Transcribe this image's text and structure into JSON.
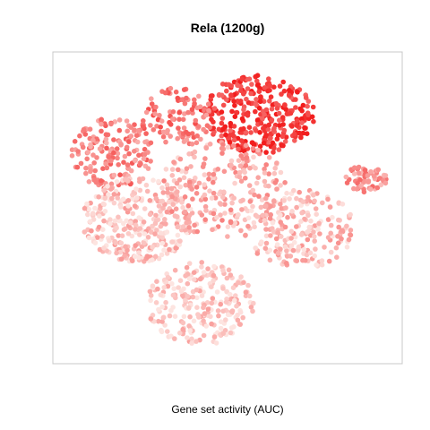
{
  "chart_data": {
    "type": "scatter",
    "title": "Rela (1200g)",
    "xlabel": "Gene set activity (AUC)",
    "ylabel": "",
    "color_low": "#fde4e0",
    "color_high": "#f21d1d",
    "frame_color": "#c8c8c8",
    "axis_ticks": false,
    "grid": false,
    "legend": "none",
    "regions": [
      {
        "name": "top-right cluster",
        "x_range": [
          0.42,
          0.76
        ],
        "y_range": [
          0.68,
          0.94
        ],
        "density": 320,
        "activity": 0.85
      },
      {
        "name": "top-middle strip",
        "x_range": [
          0.24,
          0.46
        ],
        "y_range": [
          0.7,
          0.9
        ],
        "density": 110,
        "activity": 0.55
      },
      {
        "name": "top-left arc",
        "x_range": [
          0.04,
          0.28
        ],
        "y_range": [
          0.56,
          0.8
        ],
        "density": 170,
        "activity": 0.48
      },
      {
        "name": "left lobe",
        "x_range": [
          0.07,
          0.4
        ],
        "y_range": [
          0.32,
          0.6
        ],
        "density": 320,
        "activity": 0.16
      },
      {
        "name": "center band",
        "x_range": [
          0.3,
          0.68
        ],
        "y_range": [
          0.4,
          0.72
        ],
        "density": 230,
        "activity": 0.28
      },
      {
        "name": "right lobe",
        "x_range": [
          0.55,
          0.88
        ],
        "y_range": [
          0.3,
          0.56
        ],
        "density": 210,
        "activity": 0.2
      },
      {
        "name": "far-right tip",
        "x_range": [
          0.84,
          0.97
        ],
        "y_range": [
          0.55,
          0.64
        ],
        "density": 60,
        "activity": 0.42
      },
      {
        "name": "bottom tail",
        "x_range": [
          0.26,
          0.58
        ],
        "y_range": [
          0.04,
          0.32
        ],
        "density": 240,
        "activity": 0.12
      }
    ]
  }
}
